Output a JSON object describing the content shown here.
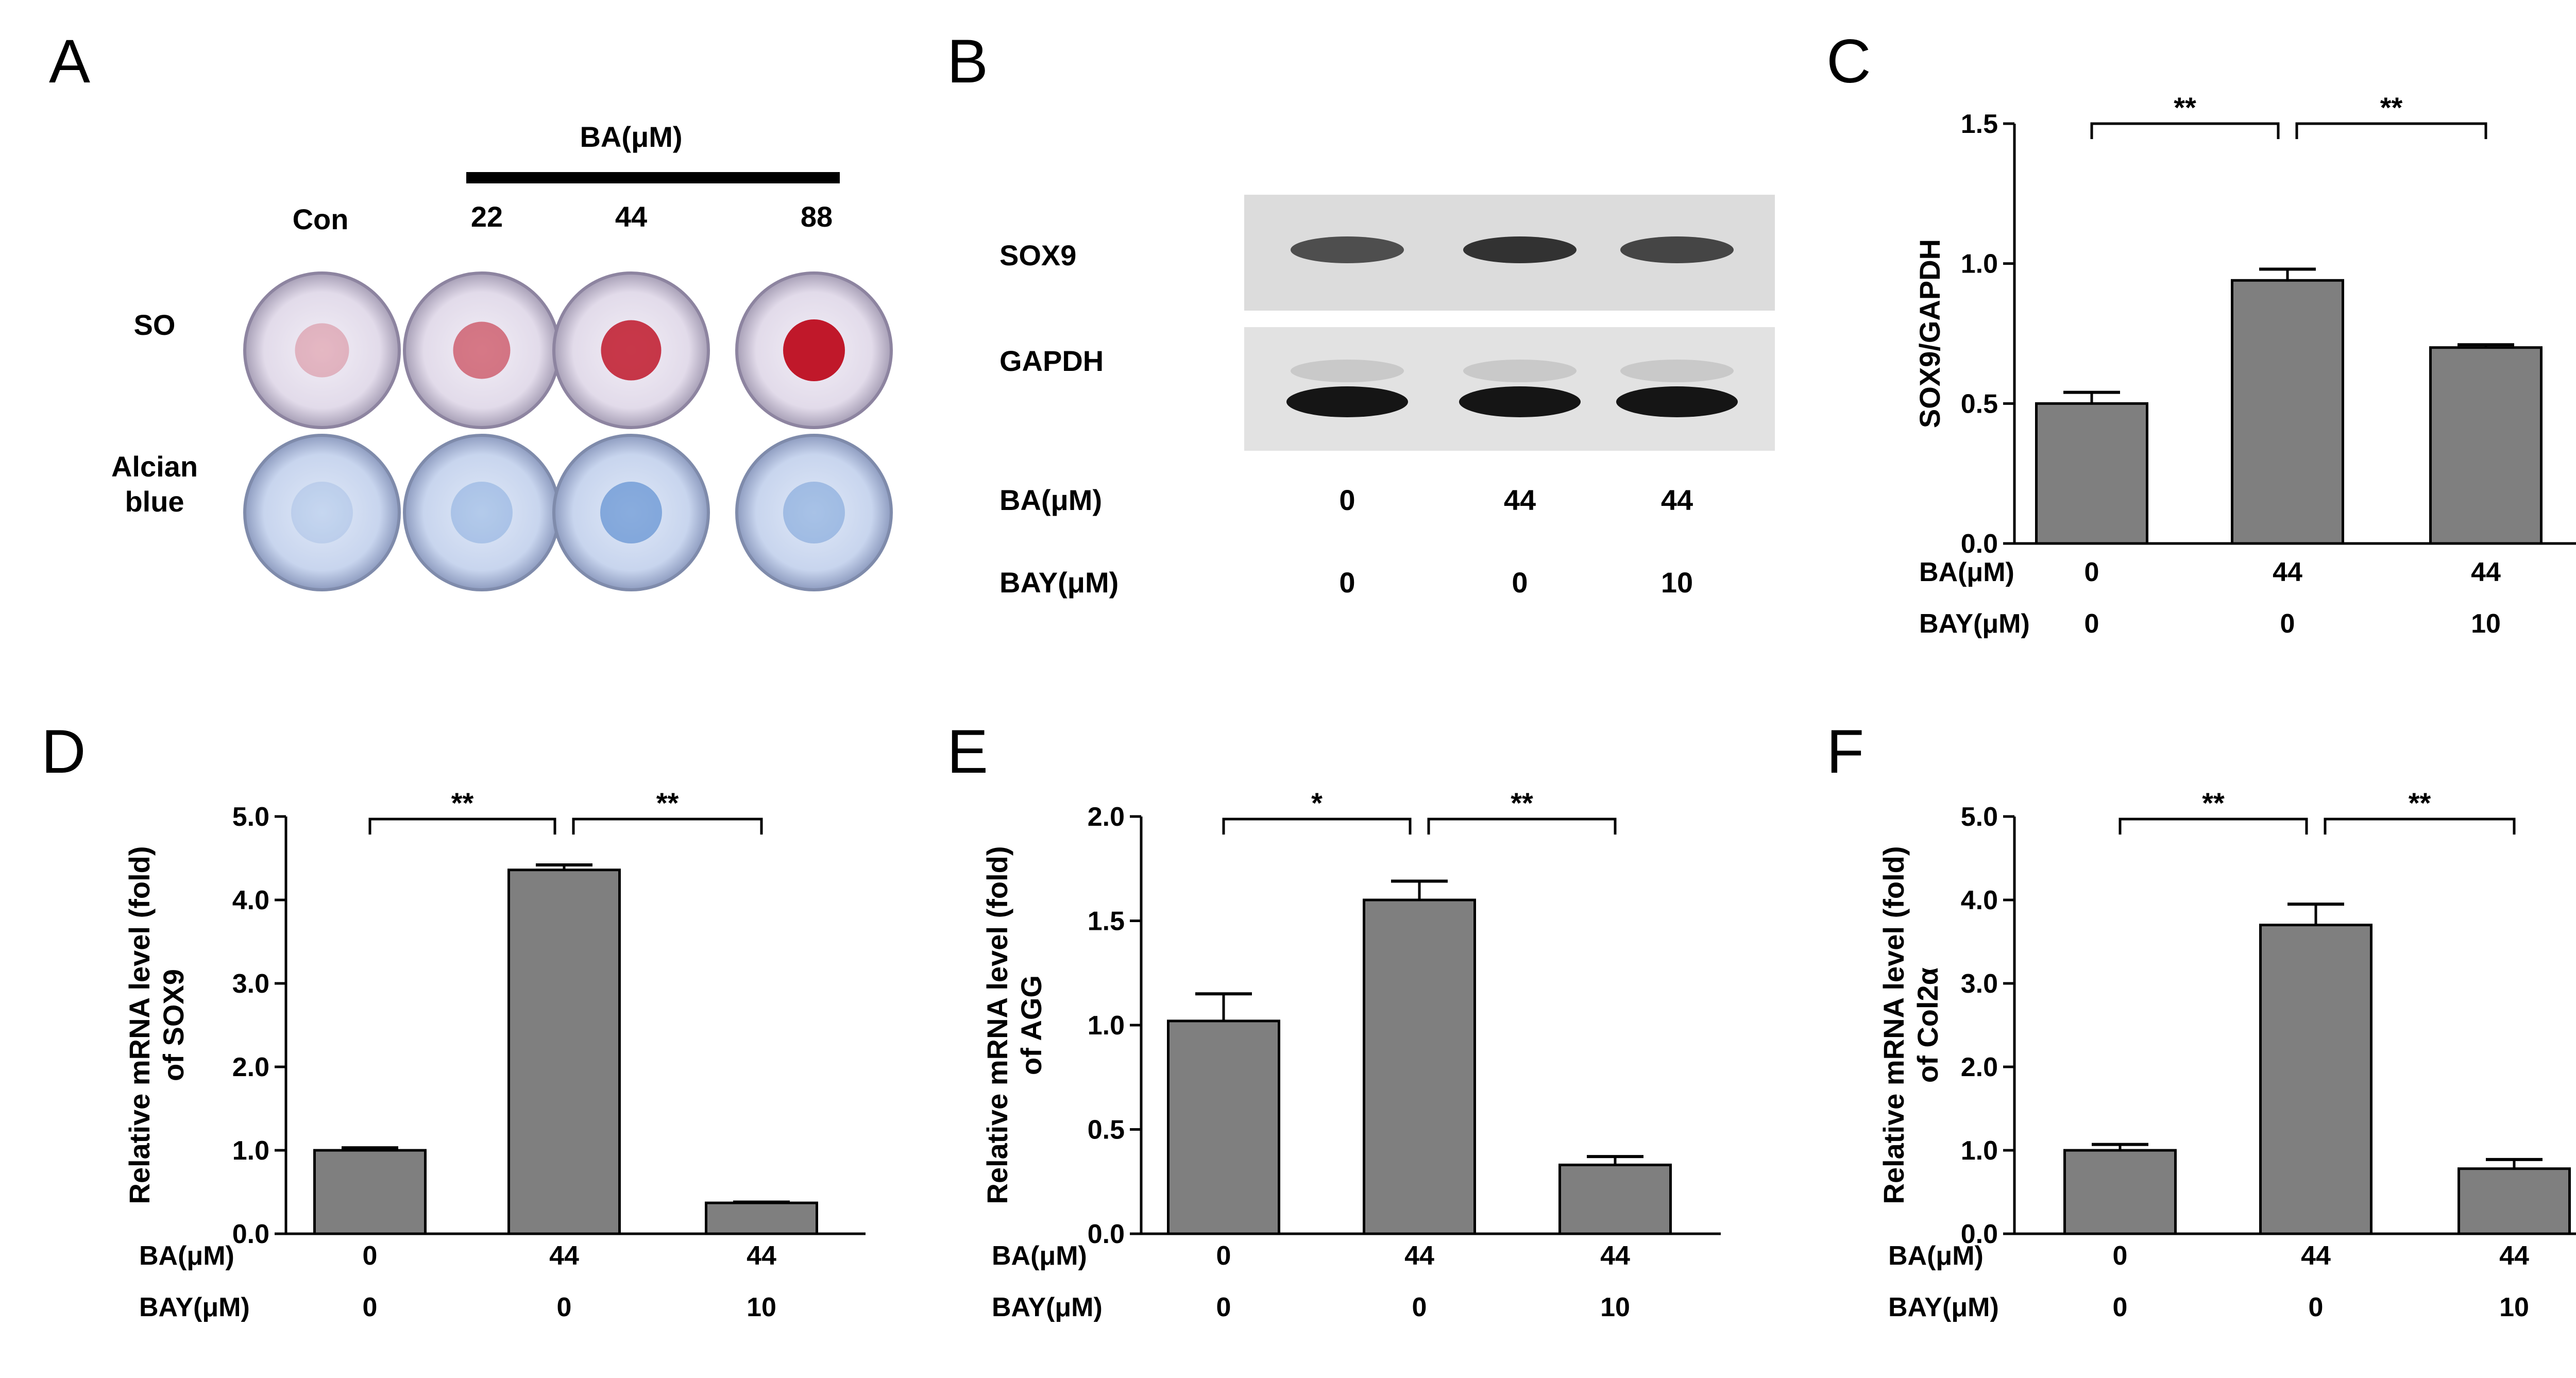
{
  "panel_letters": {
    "A": "A",
    "B": "B",
    "C": "C",
    "D": "D",
    "E": "E",
    "F": "F"
  },
  "panelA": {
    "treatment_label": "BA(μM)",
    "columns": [
      "Con",
      "22",
      "44",
      "88"
    ],
    "rows": [
      "SO",
      "Alcian blue"
    ],
    "so_intensity": [
      0.25,
      0.55,
      0.85,
      1.0
    ],
    "alcian_intensity": [
      0.2,
      0.35,
      0.7,
      0.45
    ],
    "colors": {
      "so": "#c0182a",
      "alcian": "#2f6fc4",
      "well_rim": "#cfc8d8"
    }
  },
  "panelB": {
    "bands": [
      "SOX9",
      "GAPDH"
    ],
    "sox9_intensity": [
      0.75,
      0.9,
      0.8
    ],
    "gapdh_intensity": [
      1.0,
      1.0,
      1.0
    ],
    "conditions": [
      {
        "label": "BA(μM)",
        "values": [
          "0",
          "44",
          "44"
        ]
      },
      {
        "label": "BAY(μM)",
        "values": [
          "0",
          "0",
          "10"
        ]
      }
    ]
  },
  "chart_data": [
    {
      "panel": "C",
      "type": "bar",
      "categories": [
        "0",
        "44",
        "44"
      ],
      "values": [
        0.5,
        0.94,
        0.7
      ],
      "errors": [
        0.04,
        0.04,
        0.01
      ],
      "ylabel": "SOX9/GAPDH",
      "ylim": [
        0,
        1.5
      ],
      "yticks": [
        "0.0",
        "0.5",
        "1.0",
        "1.5"
      ],
      "ystep": 0.5,
      "row_labels": [
        "BA(μM)",
        "BAY(μM)"
      ],
      "bay_values": [
        "0",
        "0",
        "10"
      ],
      "significance": [
        {
          "from": 0,
          "to": 1,
          "label": "**"
        },
        {
          "from": 1,
          "to": 2,
          "label": "**"
        }
      ],
      "bar_color": "#7f7f7f"
    },
    {
      "panel": "D",
      "type": "bar",
      "categories": [
        "0",
        "44",
        "44"
      ],
      "values": [
        1.0,
        4.36,
        0.37
      ],
      "errors": [
        0.03,
        0.06,
        0.01
      ],
      "ylabel": "Relative mRNA level (fold)",
      "ylabel2": "of SOX9",
      "ylim": [
        0,
        5.0
      ],
      "yticks": [
        "0.0",
        "1.0",
        "2.0",
        "3.0",
        "4.0",
        "5.0"
      ],
      "ystep": 1.0,
      "row_labels": [
        "BA(μM)",
        "BAY(μM)"
      ],
      "bay_values": [
        "0",
        "0",
        "10"
      ],
      "significance": [
        {
          "from": 0,
          "to": 1,
          "label": "**"
        },
        {
          "from": 1,
          "to": 2,
          "label": "**"
        }
      ],
      "bar_color": "#7f7f7f"
    },
    {
      "panel": "E",
      "type": "bar",
      "categories": [
        "0",
        "44",
        "44"
      ],
      "values": [
        1.02,
        1.6,
        0.33
      ],
      "errors": [
        0.13,
        0.09,
        0.04
      ],
      "ylabel": "Relative mRNA level (fold)",
      "ylabel2": "of AGG",
      "ylim": [
        0,
        2.0
      ],
      "yticks": [
        "0.0",
        "0.5",
        "1.0",
        "1.5",
        "2.0"
      ],
      "ystep": 0.5,
      "row_labels": [
        "BA(μM)",
        "BAY(μM)"
      ],
      "bay_values": [
        "0",
        "0",
        "10"
      ],
      "significance": [
        {
          "from": 0,
          "to": 1,
          "label": "*"
        },
        {
          "from": 1,
          "to": 2,
          "label": "**"
        }
      ],
      "bar_color": "#7f7f7f"
    },
    {
      "panel": "F",
      "type": "bar",
      "categories": [
        "0",
        "44",
        "44"
      ],
      "values": [
        1.0,
        3.7,
        0.78
      ],
      "errors": [
        0.07,
        0.25,
        0.11
      ],
      "ylabel": "Relative mRNA level (fold)",
      "ylabel2": "of Col2α",
      "ylim": [
        0,
        5.0
      ],
      "yticks": [
        "0.0",
        "1.0",
        "2.0",
        "3.0",
        "4.0",
        "5.0"
      ],
      "ystep": 1.0,
      "row_labels": [
        "BA(μM)",
        "BAY(μM)"
      ],
      "bay_values": [
        "0",
        "0",
        "10"
      ],
      "significance": [
        {
          "from": 0,
          "to": 1,
          "label": "**"
        },
        {
          "from": 1,
          "to": 2,
          "label": "**"
        }
      ],
      "bar_color": "#7f7f7f"
    }
  ]
}
